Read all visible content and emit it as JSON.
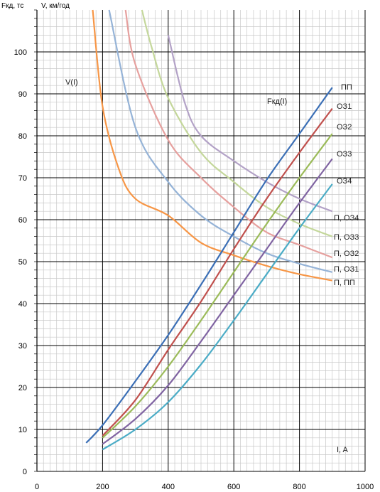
{
  "chart_data": {
    "type": "line",
    "title": "",
    "y_axis_title_force": "Fкд, тс",
    "y_axis_title_speed": "V, км/год",
    "x_axis_title": "I, A",
    "xlim": [
      0,
      1000
    ],
    "ylim": [
      0,
      110
    ],
    "x_ticks": [
      "0",
      "200",
      "400",
      "600",
      "800",
      "1000"
    ],
    "y_ticks": [
      "0",
      "10",
      "20",
      "30",
      "40",
      "50",
      "60",
      "70",
      "80",
      "90",
      "100"
    ],
    "grid": true,
    "colors": {
      "pp": "#3b6fb6",
      "o31": "#c0504d",
      "o32": "#9bbb59",
      "o33": "#8064a2",
      "o34": "#4bacc6",
      "v_pp": "#f79646",
      "v_o31": "#95b3d7",
      "v_o32": "#e6a09e",
      "v_o33": "#c4d79b",
      "v_o34": "#b3a2c7"
    },
    "group_label_force": "Fкд(I)",
    "group_label_speed": "V(I)",
    "force_series": [
      {
        "name": "ПП",
        "color_key": "pp",
        "x": [
          150,
          200,
          300,
          400,
          500,
          600,
          700,
          800,
          900
        ],
        "y": [
          6.8,
          11,
          21.5,
          32.5,
          44.5,
          57,
          69.5,
          80.5,
          91.5
        ]
      },
      {
        "name": "ОЗ1",
        "color_key": "o31",
        "x": [
          200,
          300,
          400,
          500,
          600,
          700,
          800,
          900
        ],
        "y": [
          8.5,
          17,
          29,
          40.5,
          53,
          65,
          76,
          86.5
        ]
      },
      {
        "name": "ОЗ2",
        "color_key": "o32",
        "x": [
          200,
          300,
          400,
          500,
          600,
          700,
          800,
          900
        ],
        "y": [
          8,
          15.5,
          25,
          36,
          47.5,
          59,
          70,
          80.5
        ]
      },
      {
        "name": "ОЗ3",
        "color_key": "o33",
        "x": [
          200,
          300,
          400,
          500,
          600,
          700,
          800,
          900
        ],
        "y": [
          6.5,
          12.5,
          20.5,
          31,
          42,
          53,
          64,
          74.5
        ]
      },
      {
        "name": "ОЗ4",
        "color_key": "o34",
        "x": [
          200,
          300,
          400,
          500,
          600,
          700,
          800,
          900
        ],
        "y": [
          5.2,
          10,
          16.5,
          25.5,
          36,
          47,
          58,
          68.5
        ]
      }
    ],
    "speed_series": [
      {
        "name": "П, ПП",
        "color_key": "v_pp",
        "x": [
          170,
          200,
          250,
          300,
          400,
          500,
          600,
          700,
          800,
          900
        ],
        "y": [
          110,
          87,
          72,
          65,
          61,
          54.5,
          51.5,
          49,
          47,
          45.5
        ]
      },
      {
        "name": "П, ОЗ1",
        "color_key": "v_o31",
        "x": [
          220,
          300,
          400,
          500,
          600,
          700,
          800,
          900
        ],
        "y": [
          110,
          82,
          69,
          61,
          56,
          52,
          49.5,
          47.5
        ]
      },
      {
        "name": "П, ОЗ2",
        "color_key": "v_o32",
        "x": [
          270,
          300,
          400,
          500,
          600,
          700,
          800,
          900
        ],
        "y": [
          110,
          97,
          79,
          70,
          63,
          57,
          54,
          51
        ]
      },
      {
        "name": "П, ОЗ3",
        "color_key": "v_o33",
        "x": [
          320,
          350,
          400,
          500,
          600,
          700,
          800,
          900
        ],
        "y": [
          110,
          101,
          89,
          76,
          69,
          63,
          59,
          56
        ]
      },
      {
        "name": "П, ОЗ4",
        "color_key": "v_o34",
        "x": [
          400,
          450,
          500,
          600,
          700,
          800,
          900
        ],
        "y": [
          104,
          88,
          80,
          74,
          69,
          65,
          62
        ]
      }
    ]
  }
}
